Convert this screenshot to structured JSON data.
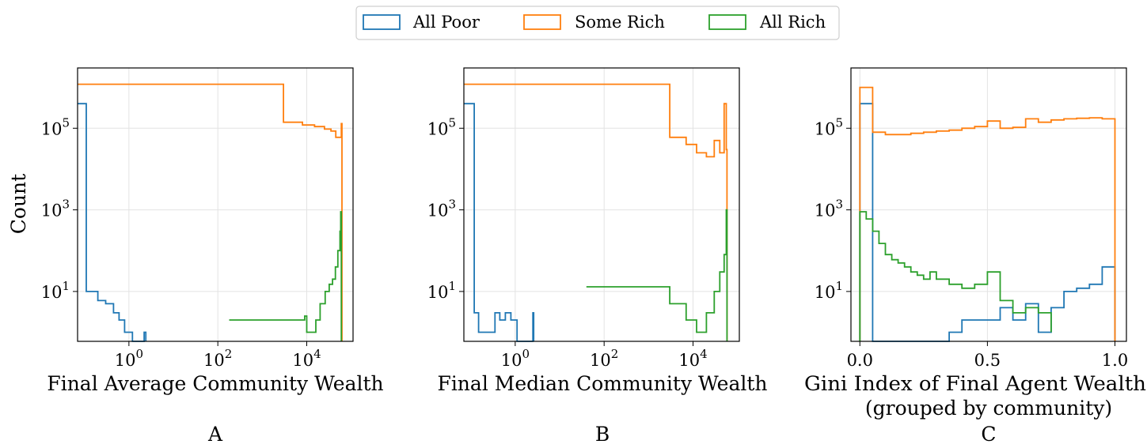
{
  "colors": {
    "all_poor": "#1f77b4",
    "some_rich": "#ff7f0e",
    "all_rich": "#2ca02c"
  },
  "legend": {
    "location": "top-center",
    "entries": [
      {
        "label": "All Poor",
        "color": "#1f77b4"
      },
      {
        "label": "Some Rich",
        "color": "#ff7f0e"
      },
      {
        "label": "All Rich",
        "color": "#2ca02c"
      }
    ]
  },
  "y_axis_label": "Count",
  "chart_data": [
    {
      "type": "histogram",
      "panel": "A",
      "xlabel": "Final Average Community Wealth",
      "ylabel": "Count",
      "xscale": "log",
      "yscale": "log",
      "xlim": [
        0.07,
        110000
      ],
      "ylim": [
        0.6,
        3000000
      ],
      "xticks": [
        {
          "base": "10",
          "exp": "0",
          "value": 1
        },
        {
          "base": "10",
          "exp": "2",
          "value": 100
        },
        {
          "base": "10",
          "exp": "4",
          "value": 10000
        }
      ],
      "yticks": [
        {
          "base": "10",
          "exp": "1",
          "value": 10
        },
        {
          "base": "10",
          "exp": "3",
          "value": 1000
        },
        {
          "base": "10",
          "exp": "5",
          "value": 100000
        }
      ],
      "grid": true,
      "series": [
        {
          "name": "All Poor",
          "color": "#1f77b4",
          "step_x": [
            0.07,
            0.11,
            0.11,
            0.2,
            0.2,
            0.3,
            0.3,
            0.45,
            0.45,
            0.6,
            0.6,
            0.8,
            0.8,
            1.2,
            1.2,
            1.4,
            1.4,
            2.2,
            2.2,
            2.4
          ],
          "step_y": [
            400000,
            400000,
            10,
            10,
            6,
            6,
            5,
            5,
            3,
            3,
            2,
            2,
            1,
            1,
            0.6,
            0.6,
            0.6,
            0.6,
            1,
            1
          ]
        },
        {
          "name": "Some Rich",
          "color": "#ff7f0e",
          "step_x": [
            0.07,
            3000,
            3000,
            8000,
            8000,
            15000,
            15000,
            25000,
            25000,
            35000,
            35000,
            45000,
            45000,
            60000,
            60000,
            62000
          ],
          "step_y": [
            1200000,
            1200000,
            140000,
            140000,
            120000,
            120000,
            110000,
            110000,
            95000,
            95000,
            85000,
            85000,
            60000,
            60000,
            130000,
            130000
          ]
        },
        {
          "name": "All Rich",
          "color": "#2ca02c",
          "step_x": [
            180,
            9000,
            9000,
            10000,
            10000,
            16000,
            16000,
            20000,
            20000,
            26000,
            26000,
            32000,
            32000,
            38000,
            38000,
            44000,
            44000,
            50000,
            50000,
            56000,
            56000,
            58000,
            58000,
            60000
          ],
          "step_y": [
            2,
            2,
            2.5,
            2.5,
            1,
            1,
            2,
            2,
            5,
            5,
            10,
            10,
            15,
            15,
            20,
            20,
            40,
            40,
            100,
            100,
            300,
            300,
            900,
            900
          ]
        }
      ]
    },
    {
      "type": "histogram",
      "panel": "B",
      "xlabel": "Final Median Community Wealth",
      "ylabel": "",
      "xscale": "log",
      "yscale": "log",
      "xlim": [
        0.07,
        110000
      ],
      "ylim": [
        0.6,
        3000000
      ],
      "xticks": [
        {
          "base": "10",
          "exp": "0",
          "value": 1
        },
        {
          "base": "10",
          "exp": "2",
          "value": 100
        },
        {
          "base": "10",
          "exp": "4",
          "value": 10000
        }
      ],
      "yticks": [
        {
          "base": "10",
          "exp": "1",
          "value": 10
        },
        {
          "base": "10",
          "exp": "3",
          "value": 1000
        },
        {
          "base": "10",
          "exp": "5",
          "value": 100000
        }
      ],
      "grid": true,
      "series": [
        {
          "name": "All Poor",
          "color": "#1f77b4",
          "step_x": [
            0.07,
            0.12,
            0.12,
            0.15,
            0.15,
            0.35,
            0.35,
            0.45,
            0.45,
            0.6,
            0.6,
            0.8,
            0.8,
            1.1,
            1.1,
            2.5,
            2.5,
            2.6
          ],
          "step_y": [
            400000,
            400000,
            3,
            3,
            1,
            1,
            3,
            3,
            2,
            2,
            3,
            3,
            2,
            2,
            0.6,
            0.6,
            3,
            3
          ]
        },
        {
          "name": "Some Rich",
          "color": "#ff7f0e",
          "step_x": [
            0.07,
            3000,
            3000,
            7000,
            7000,
            12000,
            12000,
            20000,
            20000,
            30000,
            30000,
            40000,
            40000,
            50000,
            50000,
            56000,
            56000,
            58000
          ],
          "step_y": [
            1200000,
            1200000,
            60000,
            60000,
            40000,
            40000,
            25000,
            25000,
            20000,
            20000,
            50000,
            50000,
            25000,
            25000,
            400000,
            400000,
            30000,
            30000
          ]
        },
        {
          "name": "All Rich",
          "color": "#2ca02c",
          "step_x": [
            40,
            3000,
            3000,
            7000,
            7000,
            12000,
            12000,
            20000,
            20000,
            30000,
            30000,
            40000,
            40000,
            50000,
            50000,
            56000,
            56000,
            58000
          ],
          "step_y": [
            13,
            13,
            5,
            5,
            2,
            2,
            1,
            1,
            3,
            3,
            10,
            10,
            30,
            30,
            80,
            80,
            1000,
            1000
          ]
        }
      ]
    },
    {
      "type": "histogram",
      "panel": "C",
      "xlabel": "Gini Index of Final Agent Wealth",
      "xlabel_line2": "(grouped by community)",
      "ylabel": "",
      "xscale": "linear",
      "yscale": "log",
      "xlim": [
        -0.035,
        1.045
      ],
      "ylim": [
        0.6,
        3000000
      ],
      "xticks": [
        {
          "label": "0.0",
          "value": 0.0
        },
        {
          "label": "0.5",
          "value": 0.5
        },
        {
          "label": "1.0",
          "value": 1.0
        }
      ],
      "yticks": [
        {
          "base": "10",
          "exp": "1",
          "value": 10
        },
        {
          "base": "10",
          "exp": "3",
          "value": 1000
        },
        {
          "base": "10",
          "exp": "5",
          "value": 100000
        }
      ],
      "grid": true,
      "series": [
        {
          "name": "All Poor",
          "color": "#1f77b4",
          "bin_edges": [
            0,
            0.05,
            0.1,
            0.15,
            0.2,
            0.25,
            0.3,
            0.35,
            0.4,
            0.45,
            0.5,
            0.55,
            0.6,
            0.65,
            0.7,
            0.75,
            0.8,
            0.85,
            0.9,
            0.95,
            1.0
          ],
          "counts": [
            400000,
            0,
            0,
            0,
            0,
            0,
            0,
            1,
            2,
            2,
            2,
            4,
            2,
            5,
            1,
            4,
            10,
            12,
            15,
            40
          ]
        },
        {
          "name": "Some Rich",
          "color": "#ff7f0e",
          "bin_edges": [
            0,
            0.05,
            0.1,
            0.15,
            0.2,
            0.25,
            0.3,
            0.35,
            0.4,
            0.45,
            0.5,
            0.55,
            0.6,
            0.65,
            0.7,
            0.75,
            0.8,
            0.85,
            0.9,
            0.95,
            1.0
          ],
          "counts": [
            1000000,
            80000,
            70000,
            70000,
            75000,
            80000,
            85000,
            90000,
            100000,
            110000,
            150000,
            100000,
            105000,
            170000,
            140000,
            160000,
            170000,
            175000,
            180000,
            170000
          ]
        },
        {
          "name": "All Rich",
          "color": "#2ca02c",
          "bin_edges": [
            0,
            0.025,
            0.05,
            0.075,
            0.1,
            0.125,
            0.15,
            0.175,
            0.2,
            0.225,
            0.25,
            0.275,
            0.3,
            0.35,
            0.4,
            0.45,
            0.5,
            0.55,
            0.6,
            0.65,
            0.7,
            0.75
          ],
          "counts": [
            900,
            600,
            300,
            150,
            80,
            60,
            50,
            40,
            30,
            25,
            20,
            30,
            20,
            15,
            12,
            15,
            30,
            6,
            3,
            4,
            3,
            1
          ]
        }
      ]
    }
  ],
  "panels": [
    {
      "letter": "A"
    },
    {
      "letter": "B"
    },
    {
      "letter": "C"
    }
  ]
}
